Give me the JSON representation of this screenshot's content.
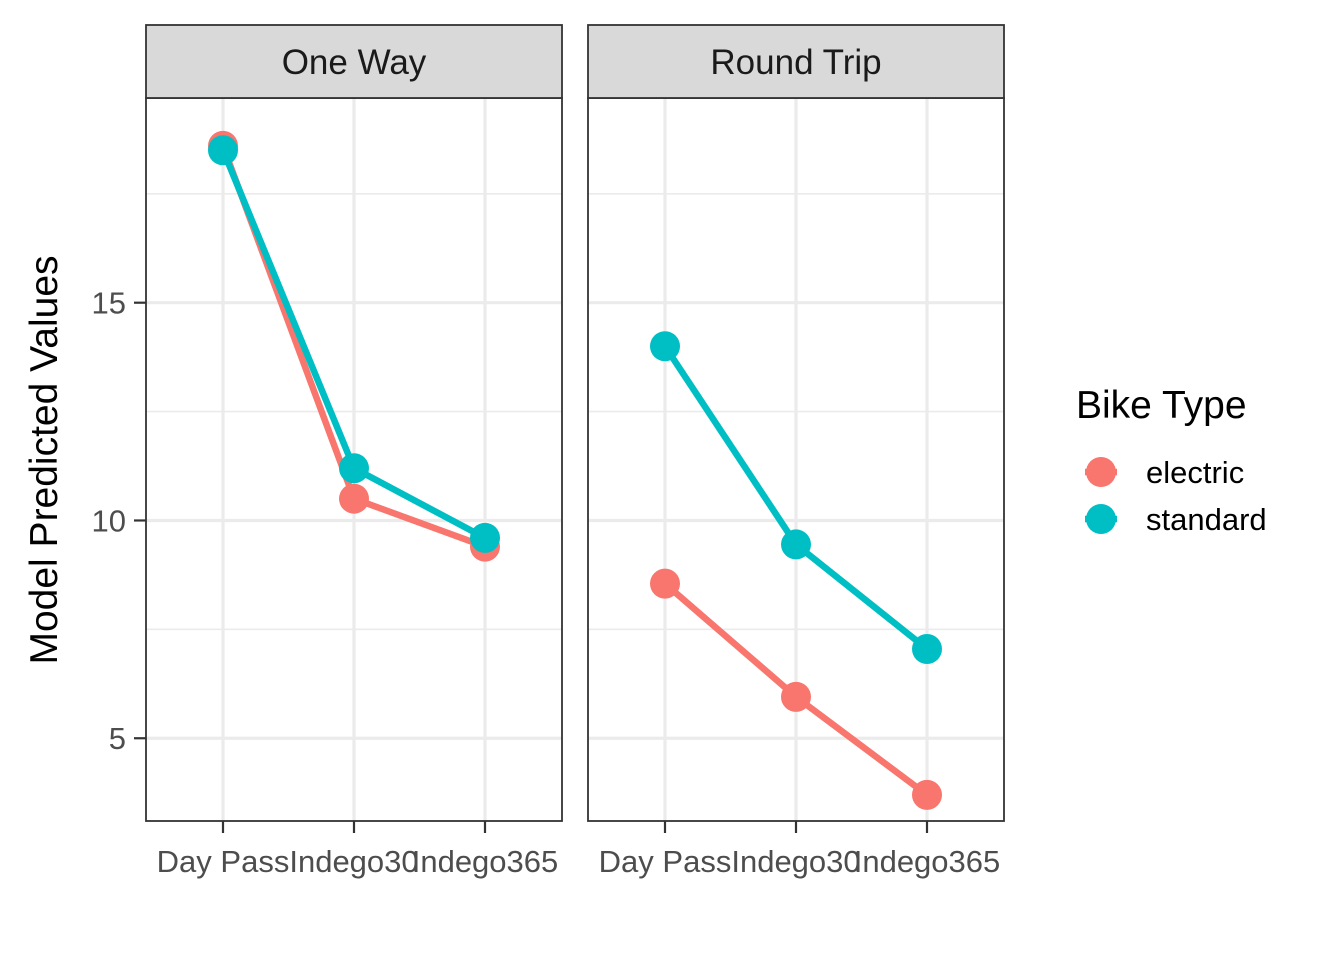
{
  "chart_data": {
    "type": "line",
    "ylabel": "Model Predicted Values",
    "xlabel": "",
    "categories": [
      "Day Pass",
      "Indego30",
      "Indego365"
    ],
    "yticks": [
      5,
      10,
      15
    ],
    "ylim": [
      3.1,
      19.7
    ],
    "grid": true,
    "legend": {
      "title": "Bike Type",
      "position": "right",
      "items": [
        "electric",
        "standard"
      ]
    },
    "colors": {
      "electric": "#F8766D",
      "standard": "#00BFC4"
    },
    "panels": [
      {
        "title": "One Way",
        "series": [
          {
            "name": "electric",
            "values": [
              18.6,
              10.5,
              9.4
            ]
          },
          {
            "name": "standard",
            "values": [
              18.5,
              11.2,
              9.6
            ]
          }
        ]
      },
      {
        "title": "Round Trip",
        "series": [
          {
            "name": "electric",
            "values": [
              8.55,
              5.95,
              3.7
            ]
          },
          {
            "name": "standard",
            "values": [
              14.0,
              9.45,
              7.05
            ]
          }
        ]
      }
    ]
  }
}
